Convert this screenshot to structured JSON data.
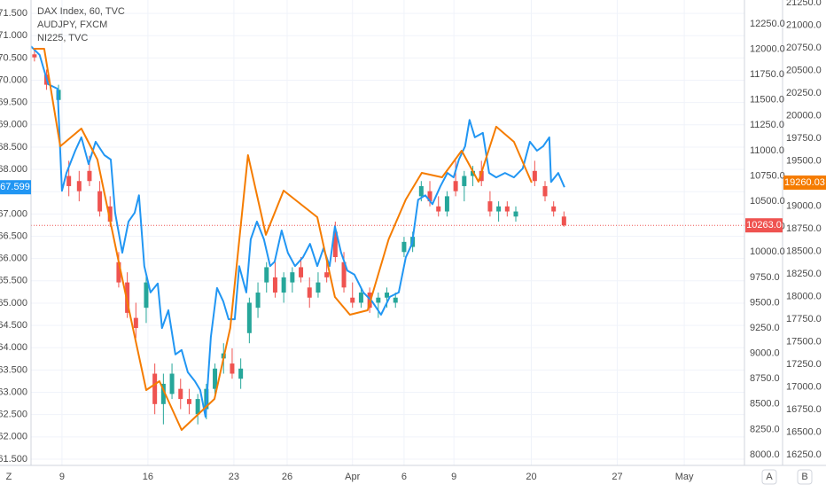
{
  "chart_data": {
    "type": "candlestick",
    "legend": [
      "DAX Index, 60, TVC",
      "AUDJPY, FXCM",
      "NI225, TVC"
    ],
    "xlim": [
      -1.8,
      39.7
    ],
    "xticks": [
      {
        "value": 0,
        "label": "9"
      },
      {
        "value": 5,
        "label": "16"
      },
      {
        "value": 10,
        "label": "23"
      },
      {
        "value": 13.1,
        "label": "26"
      },
      {
        "value": 16.9,
        "label": "Apr"
      },
      {
        "value": 19.9,
        "label": "6"
      },
      {
        "value": 22.8,
        "label": "9"
      },
      {
        "value": 27.3,
        "label": "20"
      },
      {
        "value": 32.3,
        "label": "27"
      },
      {
        "value": 36.2,
        "label": "May"
      }
    ],
    "ylim": [
      61.36,
      71.8
    ],
    "yticks": [
      {
        "value": 61.5,
        "label": "61.500"
      },
      {
        "value": 62,
        "label": "62.000"
      },
      {
        "value": 62.5,
        "label": "62.500"
      },
      {
        "value": 63,
        "label": "63.000"
      },
      {
        "value": 63.5,
        "label": "63.500"
      },
      {
        "value": 64,
        "label": "64.000"
      },
      {
        "value": 64.5,
        "label": "64.500"
      },
      {
        "value": 65,
        "label": "65.000"
      },
      {
        "value": 65.5,
        "label": "65.500"
      },
      {
        "value": 66,
        "label": "66.000"
      },
      {
        "value": 66.5,
        "label": "66.500"
      },
      {
        "value": 67,
        "label": "67.000"
      },
      {
        "value": 67.5,
        "label": "67.500"
      },
      {
        "value": 68,
        "label": "68.000"
      },
      {
        "value": 68.5,
        "label": "68.500"
      },
      {
        "value": 69,
        "label": "69.000"
      },
      {
        "value": 69.5,
        "label": "69.500"
      },
      {
        "value": 70,
        "label": "70.000"
      },
      {
        "value": 70.5,
        "label": "70.500"
      },
      {
        "value": 71,
        "label": "71.000"
      },
      {
        "value": 71.5,
        "label": "71.500"
      }
    ],
    "y2lim": [
      7895,
      12486
    ],
    "y2ticks": [
      {
        "value": 8000,
        "label": "8000.0"
      },
      {
        "value": 8250,
        "label": "8250.0"
      },
      {
        "value": 8500,
        "label": "8500.0"
      },
      {
        "value": 8750,
        "label": "8750.0"
      },
      {
        "value": 9000,
        "label": "9000.0"
      },
      {
        "value": 9250,
        "label": "9250.0"
      },
      {
        "value": 9500,
        "label": "9500.0"
      },
      {
        "value": 9750,
        "label": "9750.0"
      },
      {
        "value": 10000,
        "label": "10000.0"
      },
      {
        "value": 10250,
        "label": "10250.0"
      },
      {
        "value": 10500,
        "label": "10500.0"
      },
      {
        "value": 10750,
        "label": "10750.0"
      },
      {
        "value": 11000,
        "label": "11000.0"
      },
      {
        "value": 11250,
        "label": "11250.0"
      },
      {
        "value": 11500,
        "label": "11500.0"
      },
      {
        "value": 11750,
        "label": "11750.0"
      },
      {
        "value": 12000,
        "label": "12000.0"
      },
      {
        "value": 12250,
        "label": "12250.0"
      }
    ],
    "y3lim": [
      16133,
      21279
    ],
    "y3ticks": [
      {
        "value": 16250,
        "label": "16250.0"
      },
      {
        "value": 16500,
        "label": "16500.0"
      },
      {
        "value": 16750,
        "label": "16750.0"
      },
      {
        "value": 17000,
        "label": "17000.0"
      },
      {
        "value": 17250,
        "label": "17250.0"
      },
      {
        "value": 17500,
        "label": "17500.0"
      },
      {
        "value": 17750,
        "label": "17750.0"
      },
      {
        "value": 18000,
        "label": "18000.0"
      },
      {
        "value": 18250,
        "label": "18250.0"
      },
      {
        "value": 18500,
        "label": "18500.0"
      },
      {
        "value": 18750,
        "label": "18750.0"
      },
      {
        "value": 19000,
        "label": "19000.0"
      },
      {
        "value": 19250,
        "label": "19250.0"
      },
      {
        "value": 19500,
        "label": "19500.0"
      },
      {
        "value": 19750,
        "label": "19750.0"
      },
      {
        "value": 20000,
        "label": "20000.0"
      },
      {
        "value": 20250,
        "label": "20250.0"
      },
      {
        "value": 20500,
        "label": "20500.0"
      },
      {
        "value": 20750,
        "label": "20750.0"
      },
      {
        "value": 21000,
        "label": "21000.0"
      },
      {
        "value": 21250,
        "label": "21250.0"
      }
    ],
    "candles": {
      "axis": "y2",
      "up_color": "#26a69a",
      "down_color": "#ef5350",
      "last_label": "10263.0",
      "x": [
        -1.6,
        -0.9,
        -0.2,
        0.4,
        1.0,
        1.6,
        2.2,
        2.8,
        3.3,
        3.8,
        4.3,
        4.9,
        5.4,
        5.9,
        6.4,
        6.9,
        7.4,
        7.9,
        8.4,
        8.9,
        9.4,
        9.9,
        10.4,
        10.9,
        11.4,
        11.9,
        12.4,
        12.9,
        13.4,
        13.9,
        14.4,
        14.9,
        15.4,
        15.9,
        16.4,
        16.9,
        17.4,
        17.9,
        18.4,
        18.9,
        19.4,
        19.9,
        20.4,
        20.9,
        21.4,
        21.9,
        22.4,
        22.9,
        23.4,
        23.9,
        24.4,
        24.9,
        25.4,
        25.9,
        26.4,
        27.5,
        28.1,
        28.6,
        29.2
      ],
      "open": [
        11950,
        11750,
        11500,
        10750,
        10700,
        10800,
        10600,
        10450,
        9900,
        9700,
        9350,
        9450,
        8800,
        8500,
        8600,
        8650,
        8550,
        8400,
        8450,
        8650,
        8950,
        8900,
        8750,
        9200,
        9450,
        9700,
        9750,
        9600,
        9700,
        9850,
        9650,
        9600,
        9800,
        10200,
        9900,
        9550,
        9500,
        9600,
        9500,
        9550,
        9500,
        10000,
        10050,
        10550,
        10600,
        10450,
        10400,
        10700,
        10650,
        10750,
        10800,
        10500,
        10400,
        10450,
        10350,
        10800,
        10650,
        10450,
        10350
      ],
      "high": [
        12000,
        11800,
        11650,
        10900,
        10800,
        10950,
        10700,
        10550,
        10000,
        9800,
        9500,
        9800,
        8900,
        8800,
        8900,
        8750,
        8650,
        8600,
        8700,
        8900,
        9100,
        9050,
        8950,
        9550,
        9700,
        9900,
        9900,
        9800,
        9850,
        9950,
        9750,
        9800,
        9950,
        10300,
        10000,
        9700,
        9650,
        9650,
        9600,
        9650,
        9600,
        10150,
        10200,
        10700,
        10700,
        10550,
        10600,
        10900,
        10800,
        10850,
        10900,
        10600,
        10500,
        10500,
        10450,
        10900,
        10700,
        10500,
        10400
      ],
      "low": [
        11880,
        11600,
        11400,
        10550,
        10500,
        10650,
        10350,
        10250,
        9650,
        9350,
        9150,
        9300,
        8400,
        8300,
        8550,
        8450,
        8400,
        8300,
        8350,
        8600,
        8800,
        8750,
        8650,
        9100,
        9350,
        9600,
        9550,
        9500,
        9600,
        9700,
        9450,
        9550,
        9700,
        9900,
        9600,
        9450,
        9450,
        9400,
        9350,
        9450,
        9450,
        9950,
        10000,
        10500,
        10450,
        10350,
        10350,
        10550,
        10500,
        10650,
        10650,
        10350,
        10300,
        10350,
        10300,
        10650,
        10500,
        10350,
        10250
      ],
      "close": [
        11920,
        11650,
        11600,
        10650,
        10600,
        10700,
        10400,
        10300,
        9700,
        9400,
        9250,
        9700,
        8500,
        8700,
        8800,
        8550,
        8500,
        8550,
        8650,
        8850,
        9000,
        8800,
        8850,
        9500,
        9600,
        9850,
        9600,
        9750,
        9800,
        9750,
        9550,
        9700,
        9750,
        9950,
        9650,
        9500,
        9600,
        9450,
        9550,
        9600,
        9550,
        10100,
        10150,
        10650,
        10500,
        10400,
        10550,
        10600,
        10750,
        10800,
        10700,
        10400,
        10450,
        10400,
        10400,
        10700,
        10550,
        10400,
        10263
      ]
    },
    "series": [
      {
        "name": "AUDJPY, FXCM",
        "axis": "y",
        "color": "#2196f3",
        "last_label": "67.599",
        "x": [
          -1.8,
          -1.3,
          -0.8,
          -0.26,
          0,
          0.26,
          0.77,
          1.13,
          1.55,
          1.96,
          2.47,
          2.84,
          3.09,
          3.51,
          3.87,
          4.23,
          4.48,
          4.79,
          5.15,
          5.57,
          5.82,
          6.19,
          6.6,
          6.96,
          7.32,
          7.73,
          8.04,
          8.35,
          8.66,
          9.02,
          9.38,
          9.69,
          10.05,
          10.31,
          10.72,
          10.98,
          11.34,
          11.75,
          12.11,
          12.37,
          12.78,
          13.14,
          13.56,
          14.02,
          14.43,
          14.85,
          15.21,
          15.57,
          15.88,
          16.24,
          16.6,
          17.01,
          17.53,
          18.04,
          18.56,
          19.07,
          19.59,
          20,
          20.36,
          20.72,
          21.13,
          21.55,
          22.01,
          22.42,
          22.78,
          23.09,
          23.45,
          23.71,
          24.02,
          24.48,
          24.85,
          25.26,
          25.77,
          26.29,
          26.8,
          27.22,
          27.63,
          27.99,
          28.35,
          28.45,
          28.87,
          29.23
        ],
        "values": [
          70.76,
          70.57,
          69.91,
          69.81,
          67.52,
          67.92,
          68.42,
          68.72,
          68.12,
          68.62,
          68.32,
          68.22,
          67.03,
          66.13,
          66.83,
          67.03,
          67.42,
          65.83,
          65.24,
          65.44,
          64.44,
          64.84,
          63.85,
          63.95,
          63.45,
          63.25,
          63.05,
          62.45,
          64.24,
          65.34,
          65.04,
          64.64,
          64.64,
          65.83,
          65.24,
          66.43,
          66.83,
          66.43,
          65.83,
          65.93,
          66.63,
          66.13,
          65.83,
          66.03,
          66.33,
          65.83,
          66.23,
          65.83,
          66.72,
          66.13,
          65.73,
          65.64,
          65.24,
          65.04,
          64.74,
          65.14,
          65.24,
          66.03,
          66.33,
          67.32,
          67.42,
          67.22,
          67.62,
          67.92,
          67.82,
          68.22,
          68.52,
          69.11,
          68.72,
          68.82,
          67.92,
          67.82,
          67.92,
          67.82,
          68.02,
          68.62,
          68.42,
          68.52,
          68.72,
          67.72,
          67.92,
          67.6
        ]
      },
      {
        "name": "NI225, TVC",
        "axis": "y3",
        "color": "#f57c00",
        "last_label": "19260.03",
        "x": [
          -1.66,
          -1.03,
          -0.1,
          1.13,
          2.06,
          3.35,
          4.9,
          5.67,
          6.96,
          8.87,
          9.79,
          10.82,
          11.86,
          12.89,
          14.85,
          15.88,
          16.75,
          17.78,
          19.0,
          20.0,
          20.93,
          22.11,
          23.25,
          24.23,
          25.26,
          26.29,
          27.32
        ],
        "values": [
          20740,
          20740,
          19662,
          19858,
          19515,
          18338,
          16966,
          17064,
          16525,
          16868,
          17652,
          19564,
          18682,
          19172,
          18878,
          17995,
          17799,
          17848,
          18632,
          19074,
          19368,
          19319,
          19613,
          19270,
          19878,
          19711,
          19260
        ]
      }
    ],
    "grid": true,
    "controls": [
      "Z",
      "A",
      "B"
    ]
  }
}
